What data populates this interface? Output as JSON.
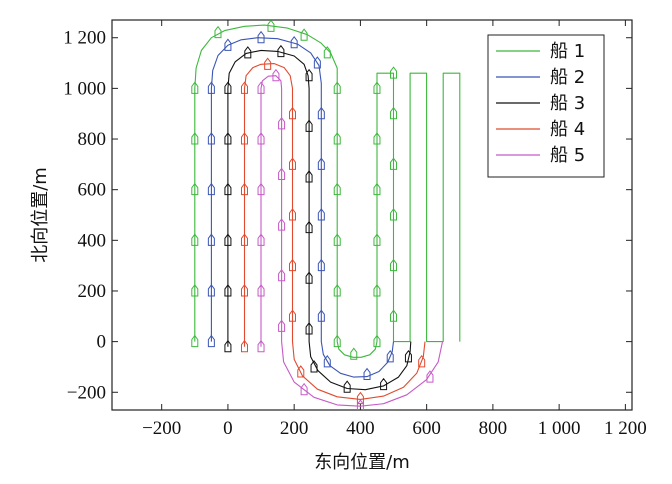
{
  "chart_data": {
    "type": "line",
    "xlabel": "东向位置/m",
    "ylabel": "北向位置/m",
    "xlim": [
      -350,
      1220
    ],
    "ylim": [
      -270,
      1270
    ],
    "x_ticks": [
      {
        "value": -200,
        "label": "−200"
      },
      {
        "value": 0,
        "label": "0"
      },
      {
        "value": 200,
        "label": "200"
      },
      {
        "value": 400,
        "label": "400"
      },
      {
        "value": 600,
        "label": "600"
      },
      {
        "value": 800,
        "label": "800"
      },
      {
        "value": 1000,
        "label": "1 000"
      },
      {
        "value": 1200,
        "label": "1 200"
      }
    ],
    "y_ticks": [
      {
        "value": -200,
        "label": "−200"
      },
      {
        "value": 0,
        "label": "0"
      },
      {
        "value": 200,
        "label": "200"
      },
      {
        "value": 400,
        "label": "400"
      },
      {
        "value": 600,
        "label": "600"
      },
      {
        "value": 800,
        "label": "800"
      },
      {
        "value": 1000,
        "label": "1 000"
      },
      {
        "value": 1200,
        "label": "1 200"
      }
    ],
    "grid": false,
    "legend_position": "top-right",
    "series": [
      {
        "name": "船 1",
        "color": "#3cb83c",
        "points": [
          [
            -100,
            0
          ],
          [
            -100,
            1000
          ],
          [
            -96,
            1080
          ],
          [
            -80,
            1150
          ],
          [
            -50,
            1200
          ],
          [
            -10,
            1228
          ],
          [
            50,
            1245
          ],
          [
            110,
            1250
          ],
          [
            180,
            1238
          ],
          [
            240,
            1212
          ],
          [
            280,
            1180
          ],
          [
            310,
            1140
          ],
          [
            330,
            1080
          ],
          [
            330,
            1000
          ],
          [
            330,
            0
          ],
          [
            335,
            -30
          ],
          [
            352,
            -52
          ],
          [
            378,
            -62
          ],
          [
            402,
            -62
          ],
          [
            428,
            -52
          ],
          [
            445,
            -30
          ],
          [
            450,
            0
          ],
          [
            450,
            1060
          ],
          [
            500,
            1060
          ],
          [
            500,
            0
          ],
          [
            550,
            0
          ],
          [
            550,
            1060
          ],
          [
            600,
            1060
          ],
          [
            600,
            0
          ],
          [
            650,
            0
          ],
          [
            650,
            1060
          ],
          [
            700,
            1060
          ],
          [
            700,
            0
          ]
        ],
        "markers": [
          [
            -100,
            0
          ],
          [
            -100,
            200
          ],
          [
            -100,
            400
          ],
          [
            -100,
            600
          ],
          [
            -100,
            800
          ],
          [
            -100,
            1000
          ],
          [
            -30,
            1220
          ],
          [
            130,
            1245
          ],
          [
            230,
            1210
          ],
          [
            300,
            1140
          ],
          [
            330,
            1000
          ],
          [
            330,
            800
          ],
          [
            330,
            600
          ],
          [
            330,
            400
          ],
          [
            330,
            200
          ],
          [
            330,
            0
          ],
          [
            380,
            -50
          ],
          [
            450,
            0
          ],
          [
            450,
            200
          ],
          [
            450,
            400
          ],
          [
            450,
            600
          ],
          [
            450,
            800
          ],
          [
            450,
            1000
          ],
          [
            500,
            1060
          ],
          [
            500,
            900
          ],
          [
            500,
            700
          ],
          [
            500,
            500
          ],
          [
            500,
            300
          ],
          [
            500,
            100
          ]
        ]
      },
      {
        "name": "船 2",
        "color": "#3a55b4",
        "points": [
          [
            -50,
            0
          ],
          [
            -50,
            1000
          ],
          [
            -46,
            1070
          ],
          [
            -30,
            1130
          ],
          [
            0,
            1170
          ],
          [
            40,
            1192
          ],
          [
            90,
            1200
          ],
          [
            150,
            1196
          ],
          [
            210,
            1175
          ],
          [
            250,
            1140
          ],
          [
            275,
            1090
          ],
          [
            282,
            1020
          ],
          [
            282,
            0
          ],
          [
            288,
            -50
          ],
          [
            308,
            -95
          ],
          [
            340,
            -125
          ],
          [
            380,
            -140
          ],
          [
            420,
            -138
          ],
          [
            456,
            -118
          ],
          [
            482,
            -82
          ],
          [
            496,
            -40
          ],
          [
            500,
            0
          ]
        ],
        "markers": [
          [
            -50,
            0
          ],
          [
            -50,
            200
          ],
          [
            -50,
            400
          ],
          [
            -50,
            600
          ],
          [
            -50,
            800
          ],
          [
            -50,
            1000
          ],
          [
            0,
            1170
          ],
          [
            100,
            1200
          ],
          [
            200,
            1180
          ],
          [
            270,
            1100
          ],
          [
            282,
            900
          ],
          [
            282,
            700
          ],
          [
            282,
            500
          ],
          [
            282,
            300
          ],
          [
            282,
            100
          ],
          [
            300,
            -80
          ],
          [
            420,
            -130
          ],
          [
            490,
            -60
          ]
        ]
      },
      {
        "name": "船 3",
        "color": "#111111",
        "points": [
          [
            0,
            -20
          ],
          [
            0,
            1000
          ],
          [
            4,
            1060
          ],
          [
            22,
            1105
          ],
          [
            55,
            1138
          ],
          [
            100,
            1150
          ],
          [
            150,
            1146
          ],
          [
            200,
            1128
          ],
          [
            230,
            1095
          ],
          [
            242,
            1050
          ],
          [
            245,
            1000
          ],
          [
            245,
            0
          ],
          [
            250,
            -60
          ],
          [
            272,
            -115
          ],
          [
            310,
            -160
          ],
          [
            360,
            -185
          ],
          [
            415,
            -190
          ],
          [
            470,
            -175
          ],
          [
            515,
            -140
          ],
          [
            540,
            -95
          ],
          [
            550,
            -40
          ],
          [
            552,
            0
          ]
        ],
        "markers": [
          [
            0,
            -20
          ],
          [
            0,
            200
          ],
          [
            0,
            400
          ],
          [
            0,
            600
          ],
          [
            0,
            800
          ],
          [
            0,
            1000
          ],
          [
            60,
            1140
          ],
          [
            160,
            1145
          ],
          [
            245,
            1050
          ],
          [
            245,
            850
          ],
          [
            245,
            650
          ],
          [
            245,
            450
          ],
          [
            245,
            250
          ],
          [
            245,
            50
          ],
          [
            260,
            -100
          ],
          [
            360,
            -180
          ],
          [
            470,
            -170
          ],
          [
            545,
            -60
          ]
        ]
      },
      {
        "name": "船 4",
        "color": "#e14a2f",
        "points": [
          [
            50,
            -20
          ],
          [
            50,
            1000
          ],
          [
            55,
            1050
          ],
          [
            75,
            1082
          ],
          [
            100,
            1095
          ],
          [
            140,
            1098
          ],
          [
            170,
            1082
          ],
          [
            188,
            1050
          ],
          [
            195,
            1000
          ],
          [
            195,
            0
          ],
          [
            200,
            -70
          ],
          [
            225,
            -135
          ],
          [
            270,
            -188
          ],
          [
            330,
            -218
          ],
          [
            400,
            -228
          ],
          [
            470,
            -215
          ],
          [
            530,
            -180
          ],
          [
            570,
            -125
          ],
          [
            590,
            -60
          ],
          [
            595,
            0
          ]
        ],
        "markers": [
          [
            50,
            -20
          ],
          [
            50,
            200
          ],
          [
            50,
            400
          ],
          [
            50,
            600
          ],
          [
            50,
            800
          ],
          [
            50,
            1000
          ],
          [
            120,
            1095
          ],
          [
            195,
            900
          ],
          [
            195,
            700
          ],
          [
            195,
            500
          ],
          [
            195,
            300
          ],
          [
            195,
            100
          ],
          [
            220,
            -120
          ],
          [
            400,
            -225
          ],
          [
            585,
            -80
          ]
        ]
      },
      {
        "name": "船 5",
        "color": "#c75ac7",
        "points": [
          [
            100,
            -20
          ],
          [
            100,
            1000
          ],
          [
            104,
            1030
          ],
          [
            122,
            1048
          ],
          [
            145,
            1050
          ],
          [
            160,
            1030
          ],
          [
            162,
            1000
          ],
          [
            162,
            0
          ],
          [
            168,
            -80
          ],
          [
            200,
            -160
          ],
          [
            260,
            -220
          ],
          [
            330,
            -250
          ],
          [
            400,
            -255
          ],
          [
            470,
            -245
          ],
          [
            540,
            -210
          ],
          [
            600,
            -150
          ],
          [
            635,
            -80
          ],
          [
            648,
            0
          ]
        ],
        "markers": [
          [
            100,
            -20
          ],
          [
            100,
            200
          ],
          [
            100,
            400
          ],
          [
            100,
            600
          ],
          [
            100,
            800
          ],
          [
            100,
            1000
          ],
          [
            145,
            1050
          ],
          [
            162,
            860
          ],
          [
            162,
            660
          ],
          [
            162,
            460
          ],
          [
            162,
            260
          ],
          [
            162,
            60
          ],
          [
            230,
            -190
          ],
          [
            400,
            -255
          ],
          [
            610,
            -140
          ]
        ]
      }
    ]
  }
}
